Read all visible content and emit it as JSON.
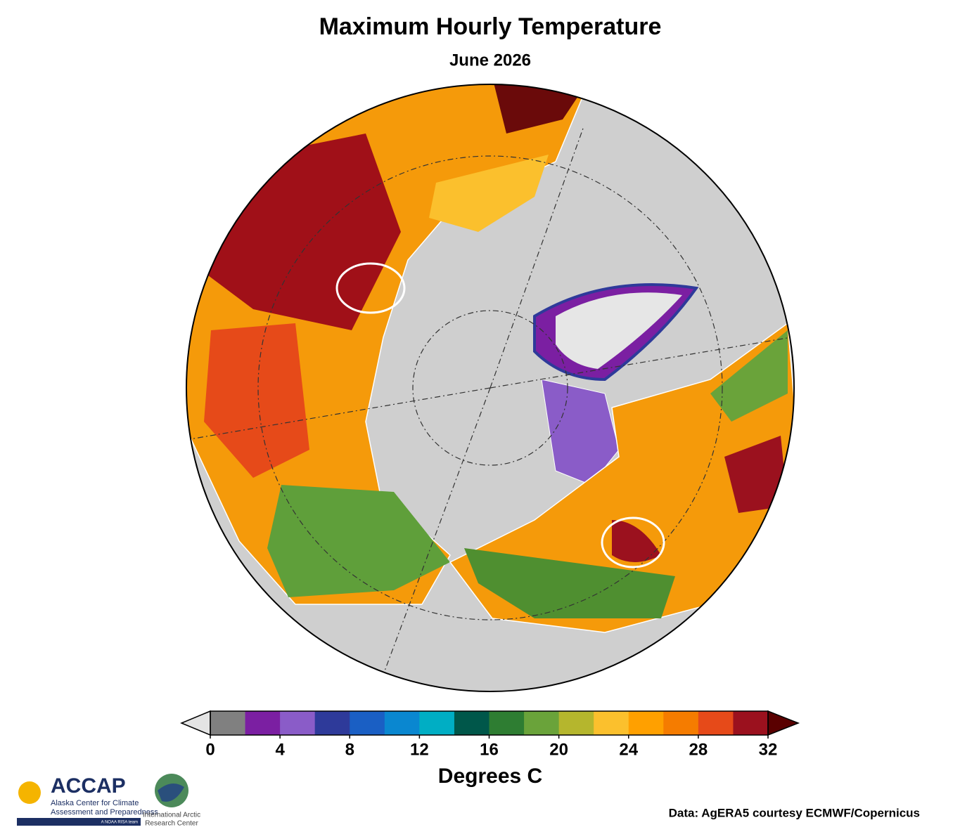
{
  "title": "Maximum Hourly Temperature",
  "subtitle": "June 2026",
  "colorbar": {
    "label": "Degrees C",
    "range": [
      0,
      32
    ],
    "ticks": [
      0,
      4,
      8,
      12,
      16,
      20,
      24,
      28,
      32
    ],
    "colors": [
      "#808080",
      "#7b1fa2",
      "#8a5cc8",
      "#2e3a9a",
      "#1a5fc4",
      "#0a87d0",
      "#00aec4",
      "#00574a",
      "#2e7d32",
      "#6aa33a",
      "#b5b62d",
      "#fbc02d",
      "#ffa000",
      "#f57c00",
      "#e64a19",
      "#9b111e"
    ],
    "under_color": "#e4e4e4",
    "over_color": "#5a0000"
  },
  "credit": "Data: AgERA5 courtesy ECMWF/Copernicus",
  "logos": {
    "accap": {
      "name": "ACCAP",
      "line1": "Alaska Center for Climate",
      "line2": "Assessment and Preparedness",
      "tagline": "A NOAA RISA team"
    },
    "iarc": {
      "line1": "International Arctic",
      "line2": "Research Center"
    }
  }
}
